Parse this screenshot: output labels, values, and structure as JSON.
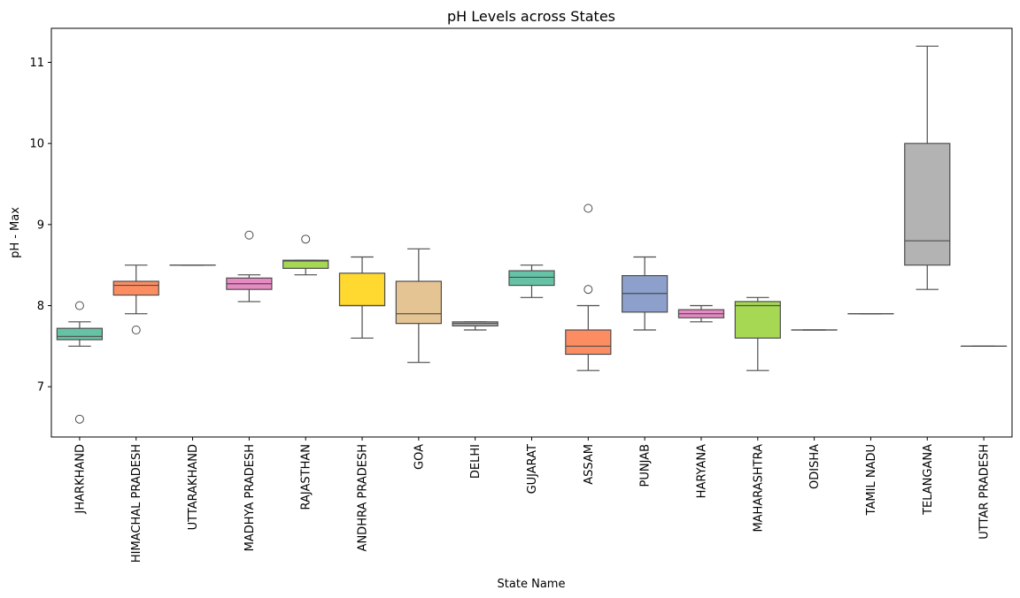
{
  "chart_data": {
    "type": "box",
    "title": "pH Levels across States",
    "xlabel": "State Name",
    "ylabel": "pH - Max",
    "ylim": [
      6.38,
      11.42
    ],
    "yticks": [
      "7",
      "8",
      "9",
      "10",
      "11"
    ],
    "grid": false,
    "legend": "none",
    "categories": [
      "JHARKHAND",
      "HIMACHAL PRADESH",
      "UTTARAKHAND",
      "MADHYA PRADESH",
      "RAJASTHAN",
      "ANDHRA PRADESH",
      "GOA",
      "DELHI",
      "GUJARAT",
      "ASSAM",
      "PUNJAB",
      "HARYANA",
      "MAHARASHTRA",
      "ODISHA",
      "TAMIL NADU",
      "TELANGANA",
      "UTTAR PRADESH"
    ],
    "boxes": [
      {
        "whislo": 7.5,
        "q1": 7.58,
        "med": 7.62,
        "q3": 7.72,
        "whishi": 7.8,
        "fliers": [
          8.0,
          6.6
        ],
        "color": "#66c2a5"
      },
      {
        "whislo": 7.9,
        "q1": 8.13,
        "med": 8.25,
        "q3": 8.3,
        "whishi": 8.5,
        "fliers": [
          7.7
        ],
        "color": "#fc8d62"
      },
      {
        "whislo": 8.5,
        "q1": 8.5,
        "med": 8.5,
        "q3": 8.5,
        "whishi": 8.5,
        "fliers": [],
        "color": "#8da0cb"
      },
      {
        "whislo": 8.05,
        "q1": 8.2,
        "med": 8.27,
        "q3": 8.34,
        "whishi": 8.38,
        "fliers": [
          8.87
        ],
        "color": "#e78ac3"
      },
      {
        "whislo": 8.38,
        "q1": 8.46,
        "med": 8.55,
        "q3": 8.56,
        "whishi": 8.56,
        "fliers": [
          8.82
        ],
        "color": "#a6d854"
      },
      {
        "whislo": 7.6,
        "q1": 8.0,
        "med": 8.0,
        "q3": 8.4,
        "whishi": 8.6,
        "fliers": [],
        "color": "#ffd92f"
      },
      {
        "whislo": 7.3,
        "q1": 7.78,
        "med": 7.9,
        "q3": 8.3,
        "whishi": 8.7,
        "fliers": [],
        "color": "#e5c494"
      },
      {
        "whislo": 7.7,
        "q1": 7.75,
        "med": 7.78,
        "q3": 7.8,
        "whishi": 7.8,
        "fliers": [],
        "color": "#b3b3b3"
      },
      {
        "whislo": 8.1,
        "q1": 8.25,
        "med": 8.35,
        "q3": 8.43,
        "whishi": 8.5,
        "fliers": [],
        "color": "#66c2a5"
      },
      {
        "whislo": 7.2,
        "q1": 7.4,
        "med": 7.5,
        "q3": 7.7,
        "whishi": 8.0,
        "fliers": [
          8.2,
          9.2
        ],
        "color": "#fc8d62"
      },
      {
        "whislo": 7.7,
        "q1": 7.92,
        "med": 8.15,
        "q3": 8.37,
        "whishi": 8.6,
        "fliers": [],
        "color": "#8da0cb"
      },
      {
        "whislo": 7.8,
        "q1": 7.85,
        "med": 7.9,
        "q3": 7.95,
        "whishi": 8.0,
        "fliers": [],
        "color": "#e78ac3"
      },
      {
        "whislo": 7.2,
        "q1": 7.6,
        "med": 8.0,
        "q3": 8.05,
        "whishi": 8.1,
        "fliers": [],
        "color": "#a6d854"
      },
      {
        "whislo": 7.7,
        "q1": 7.7,
        "med": 7.7,
        "q3": 7.7,
        "whishi": 7.7,
        "fliers": [],
        "color": "#ffd92f"
      },
      {
        "whislo": 7.9,
        "q1": 7.9,
        "med": 7.9,
        "q3": 7.9,
        "whishi": 7.9,
        "fliers": [],
        "color": "#e5c494"
      },
      {
        "whislo": 8.2,
        "q1": 8.5,
        "med": 8.8,
        "q3": 10.0,
        "whishi": 11.2,
        "fliers": [],
        "color": "#b3b3b3"
      },
      {
        "whislo": 7.5,
        "q1": 7.5,
        "med": 7.5,
        "q3": 7.5,
        "whishi": 7.5,
        "fliers": [],
        "color": "#66c2a5"
      }
    ]
  }
}
